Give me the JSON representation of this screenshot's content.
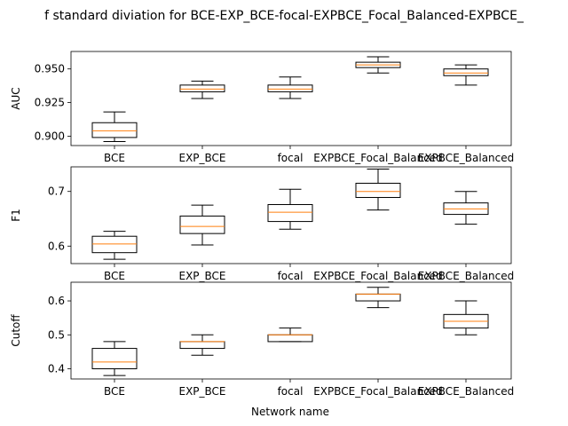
{
  "figure": {
    "title": "f standard diviation for BCE-EXP_BCE-focal-EXPBCE_Focal_Balanced-EXPBCE_",
    "xlabel": "Network name"
  },
  "style": {
    "box_color": "#000000",
    "median_color": "#ff7f0e",
    "background": "#ffffff"
  },
  "chart_data": [
    {
      "type": "box",
      "ylabel": "AUC",
      "ylim": [
        0.893,
        0.963
      ],
      "yticks": [
        0.9,
        0.925,
        0.95
      ],
      "ytick_labels": [
        "0.900",
        "0.925",
        "0.950"
      ],
      "categories": [
        "BCE",
        "EXP_BCE",
        "focal",
        "EXPBCE_Focal_Balanced",
        "EXPBCE_Balanced"
      ],
      "boxes": [
        {
          "whislo": 0.896,
          "q1": 0.899,
          "med": 0.904,
          "q3": 0.91,
          "whishi": 0.918
        },
        {
          "whislo": 0.928,
          "q1": 0.933,
          "med": 0.935,
          "q3": 0.938,
          "whishi": 0.941
        },
        {
          "whislo": 0.928,
          "q1": 0.933,
          "med": 0.935,
          "q3": 0.938,
          "whishi": 0.944
        },
        {
          "whislo": 0.947,
          "q1": 0.951,
          "med": 0.953,
          "q3": 0.955,
          "whishi": 0.959
        },
        {
          "whislo": 0.938,
          "q1": 0.945,
          "med": 0.947,
          "q3": 0.95,
          "whishi": 0.953
        }
      ]
    },
    {
      "type": "box",
      "ylabel": "F1",
      "ylim": [
        0.568,
        0.745
      ],
      "yticks": [
        0.6,
        0.7
      ],
      "ytick_labels": [
        "0.6",
        "0.7"
      ],
      "categories": [
        "BCE",
        "EXP_BCE",
        "focal",
        "EXPBCE_Focal_Balanced",
        "EXPBCE_Balanced"
      ],
      "boxes": [
        {
          "whislo": 0.576,
          "q1": 0.588,
          "med": 0.604,
          "q3": 0.618,
          "whishi": 0.627
        },
        {
          "whislo": 0.602,
          "q1": 0.623,
          "med": 0.636,
          "q3": 0.655,
          "whishi": 0.675
        },
        {
          "whislo": 0.631,
          "q1": 0.645,
          "med": 0.662,
          "q3": 0.676,
          "whishi": 0.704
        },
        {
          "whislo": 0.666,
          "q1": 0.689,
          "med": 0.7,
          "q3": 0.715,
          "whishi": 0.741
        },
        {
          "whislo": 0.64,
          "q1": 0.658,
          "med": 0.668,
          "q3": 0.679,
          "whishi": 0.7
        }
      ]
    },
    {
      "type": "box",
      "ylabel": "Cutoff",
      "ylim": [
        0.37,
        0.655
      ],
      "yticks": [
        0.4,
        0.5,
        0.6
      ],
      "ytick_labels": [
        "0.4",
        "0.5",
        "0.6"
      ],
      "categories": [
        "BCE",
        "EXP_BCE",
        "focal",
        "EXPBCE_Focal_Balanced",
        "EXPBCE_Balanced"
      ],
      "boxes": [
        {
          "whislo": 0.38,
          "q1": 0.4,
          "med": 0.42,
          "q3": 0.46,
          "whishi": 0.48
        },
        {
          "whislo": 0.44,
          "q1": 0.46,
          "med": 0.48,
          "q3": 0.48,
          "whishi": 0.5
        },
        {
          "whislo": 0.48,
          "q1": 0.48,
          "med": 0.5,
          "q3": 0.5,
          "whishi": 0.52
        },
        {
          "whislo": 0.58,
          "q1": 0.6,
          "med": 0.62,
          "q3": 0.62,
          "whishi": 0.64
        },
        {
          "whislo": 0.5,
          "q1": 0.52,
          "med": 0.54,
          "q3": 0.56,
          "whishi": 0.6
        }
      ]
    }
  ]
}
